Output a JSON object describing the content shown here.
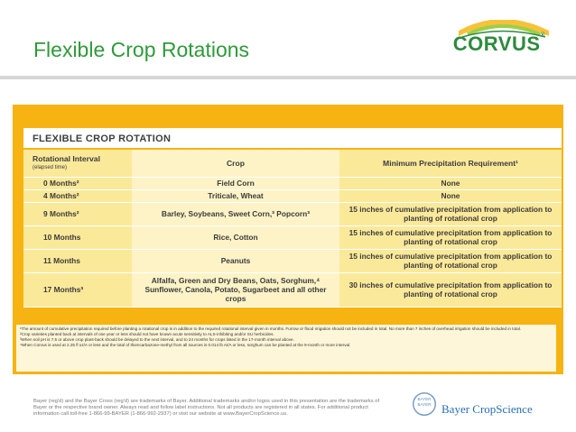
{
  "header": {
    "title": "Flexible Crop Rotations",
    "logo_text": "CORVUS",
    "logo_mark": "®"
  },
  "table": {
    "title": "FLEXIBLE CROP ROTATION",
    "columns": {
      "interval": "Rotational Interval",
      "interval_sub": "(elapsed time)",
      "crop": "Crop",
      "precip": "Minimum Precipitation Requirement¹"
    },
    "rows": [
      {
        "interval": "0 Months²",
        "crop": "Field Corn",
        "precip": "None"
      },
      {
        "interval": "4 Months²",
        "crop": "Triticale, Wheat",
        "precip": "None"
      },
      {
        "interval": "9 Months²",
        "crop": "Barley, Soybeans, Sweet Corn,³ Popcorn³",
        "precip": "15 inches of cumulative precipitation from application to planting of rotational crop"
      },
      {
        "interval": "10 Months",
        "crop": "Rice, Cotton",
        "precip": "15 inches of cumulative precipitation from application to planting of rotational crop"
      },
      {
        "interval": "11 Months",
        "crop": "Peanuts",
        "precip": "15 inches of cumulative precipitation from application to planting of rotational crop"
      },
      {
        "interval": "17 Months³",
        "crop": "Alfalfa, Green and Dry Beans, Oats, Sorghum,⁴ Sunflower, Canola, Potato, Sugarbeet and all other crops",
        "precip": "30 inches of cumulative precipitation from application to planting of rotational crop"
      }
    ],
    "footnotes": [
      "¹The amount of cumulative precipitation required before planting a rotational crop is in addition to the required rotational interval given in months. Furrow or flood irrigation should not be included in total. No more than 7 inches of overhead irrigation should be included in total.",
      "²Crop varieties planted back at intervals of one year or less should not have known acute sensitivity to ALS-inhibiting and/or SU herbicides.",
      "³When soil pH is 7.5 or above crop plant-back should be delayed to the next interval, and to 24 months for crops listed in the 17-month interval above.",
      "⁴When Corvus is used at 2.25 fl oz/A or less and the total of thiencarbazone-methyl from all sources is 0.014 lb AI/A or less, sorghum can be planted at the 9-month or more interval."
    ]
  },
  "footer": {
    "disclaimer": "Bayer (reg'd) and the Bayer Cross (reg'd) are trademarks of Bayer. Additional trademarks and/or logos used in this presentation are the trademarks of Bayer or the respective brand owner. Always read and follow label instructions. Not all products are registered in all states. For additional product information call toll-free 1-866-99-BAYER (1-866-992-2937) or visit our website at www.BayerCropScience.us.",
    "brand": "Bayer CropScience",
    "bayer_cross_text": "BAYER"
  },
  "colors": {
    "title_green": "#2f9a3a",
    "table_orange": "#f6b311",
    "table_light": "#fbe99a",
    "bayer_blue": "#2a6fb0"
  }
}
